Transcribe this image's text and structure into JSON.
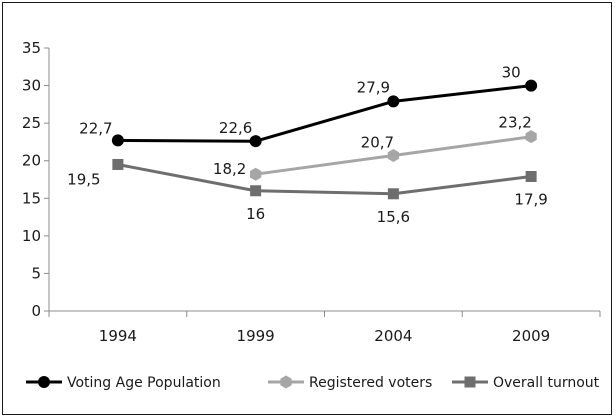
{
  "chart_data": {
    "type": "line",
    "categories": [
      "1994",
      "1999",
      "2004",
      "2009"
    ],
    "ylim": [
      0,
      35
    ],
    "yticks": [
      0,
      5,
      10,
      15,
      20,
      25,
      30,
      35
    ],
    "grid": false,
    "legend_position": "bottom",
    "series": [
      {
        "name": "Voting Age Population",
        "values": [
          22.7,
          22.6,
          27.9,
          30
        ],
        "labels": [
          "22,7",
          "22,6",
          "27,9",
          "30"
        ],
        "color": "#000000",
        "marker": "circle"
      },
      {
        "name": "Registered voters",
        "values": [
          null,
          18.2,
          20.7,
          23.2
        ],
        "labels": [
          "",
          "18,2",
          "20,7",
          "23,2"
        ],
        "color": "#a6a6a6",
        "marker": "hexagon"
      },
      {
        "name": "Overall turnout",
        "values": [
          19.5,
          16,
          15.6,
          17.9
        ],
        "labels": [
          "19,5",
          "16",
          "15,6",
          "17,9"
        ],
        "color": "#6e6e6e",
        "marker": "square"
      }
    ]
  }
}
